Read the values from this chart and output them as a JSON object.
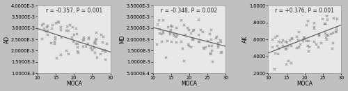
{
  "panels": [
    {
      "ylabel": "AD",
      "annotation": "r = -0.357, P = 0.001",
      "slope": -5.2e-05,
      "intercept": 0.0035,
      "ylim": [
        0.001,
        0.004
      ],
      "yticks": [
        0.001,
        0.0015,
        0.002,
        0.0025,
        0.003,
        0.0035,
        0.004
      ],
      "yticklabels": [
        "1.0000E-3",
        "1.5000E-3",
        "2.0000E-3",
        "2.5000E-3",
        "3.0000E-3",
        "3.5000E-3",
        "4.0000E-3"
      ],
      "noise_scale": 0.0004
    },
    {
      "ylabel": "MD",
      "annotation": "r = -0.348, P = 0.002",
      "slope": -4.2e-05,
      "intercept": 0.00295,
      "ylim": [
        0.0005,
        0.0035
      ],
      "yticks": [
        0.0005,
        0.001,
        0.0015,
        0.002,
        0.0025,
        0.003,
        0.0035
      ],
      "yticklabels": [
        "5.0000E-4",
        "1.0000E-3",
        "1.5000E-3",
        "2.0000E-3",
        "2.5000E-3",
        "3.0000E-3",
        "3.5000E-3"
      ],
      "noise_scale": 0.00038
    },
    {
      "ylabel": "AK",
      "annotation": "r = +0.376, P = 0.001",
      "slope": 0.0165,
      "intercept": 0.275,
      "ylim": [
        0.2,
        1.0
      ],
      "yticks": [
        0.2,
        0.4,
        0.6,
        0.8,
        1.0
      ],
      "yticklabels": [
        ".2000",
        ".4000",
        ".6000",
        ".8000",
        "1.0000"
      ],
      "noise_scale": 0.12
    }
  ],
  "xlabel": "MOCA",
  "xlim": [
    10,
    30
  ],
  "xticks": [
    10,
    15,
    20,
    25,
    30
  ],
  "xticklabels": [
    "10",
    "15",
    "20",
    "25",
    "30"
  ],
  "bg_color": "#e8e8e8",
  "outer_bg": "#c0c0c0",
  "scatter_color": "#909090",
  "line_color": "#606060",
  "marker": "x",
  "marker_size": 6,
  "marker_lw": 0.7,
  "line_width": 0.9,
  "fontsize_annot": 5.5,
  "fontsize_axis_label": 5.5,
  "fontsize_tick": 4.8,
  "n_points": 70
}
